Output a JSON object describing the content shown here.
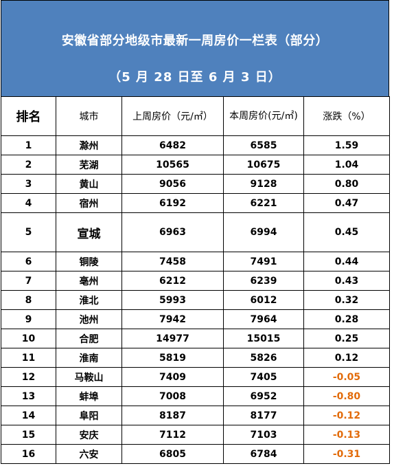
{
  "title": "安徽省部分地级市最新一周房价一栏表（部分）",
  "subtitle": "（5 月 28 日至 6 月 3 日）",
  "headers": {
    "rank": "排名",
    "city": "城市",
    "last_week": "上周房价（元/㎡）",
    "this_week": "本周房价(元/㎡)",
    "change": "涨跌（%）"
  },
  "colors": {
    "banner": "#4f81bd",
    "negative": "#e26b0a"
  },
  "rows": [
    {
      "rank": "1",
      "city": "滁州",
      "last": "6482",
      "this": "6585",
      "change": "1.59"
    },
    {
      "rank": "2",
      "city": "芜湖",
      "last": "10565",
      "this": "10675",
      "change": "1.04"
    },
    {
      "rank": "3",
      "city": "黄山",
      "last": "9056",
      "this": "9128",
      "change": "0.80"
    },
    {
      "rank": "4",
      "city": "宿州",
      "last": "6192",
      "this": "6221",
      "change": "0.47"
    },
    {
      "rank": "5",
      "city": "宣城",
      "last": "6963",
      "this": "6994",
      "change": "0.45"
    },
    {
      "rank": "6",
      "city": "铜陵",
      "last": "7458",
      "this": "7491",
      "change": "0.44"
    },
    {
      "rank": "7",
      "city": "亳州",
      "last": "6212",
      "this": "6239",
      "change": "0.43"
    },
    {
      "rank": "8",
      "city": "淮北",
      "last": "5993",
      "this": "6012",
      "change": "0.32"
    },
    {
      "rank": "9",
      "city": "池州",
      "last": "7942",
      "this": "7964",
      "change": "0.28"
    },
    {
      "rank": "10",
      "city": "合肥",
      "last": "14977",
      "this": "15015",
      "change": "0.25"
    },
    {
      "rank": "11",
      "city": "淮南",
      "last": "5819",
      "this": "5826",
      "change": "0.12"
    },
    {
      "rank": "12",
      "city": "马鞍山",
      "last": "7409",
      "this": "7405",
      "change": "-0.05"
    },
    {
      "rank": "13",
      "city": "蚌埠",
      "last": "7008",
      "this": "6952",
      "change": "-0.80"
    },
    {
      "rank": "14",
      "city": "阜阳",
      "last": "8187",
      "this": "8177",
      "change": "-0.12"
    },
    {
      "rank": "15",
      "city": "安庆",
      "last": "7112",
      "this": "7103",
      "change": "-0.13"
    },
    {
      "rank": "16",
      "city": "六安",
      "last": "6805",
      "this": "6784",
      "change": "-0.31"
    }
  ]
}
